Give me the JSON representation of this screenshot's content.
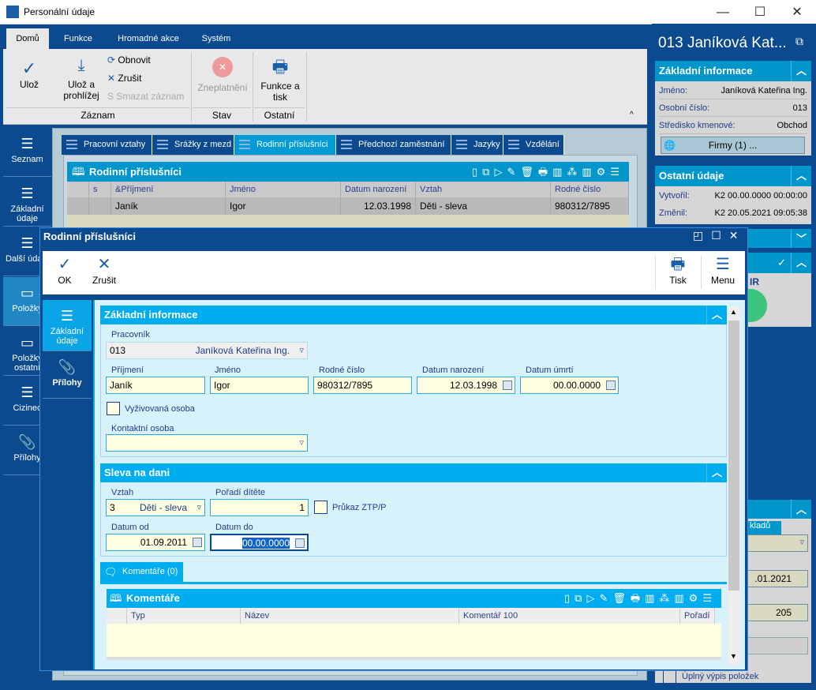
{
  "window": {
    "title": "Personální údaje",
    "minimize": "—",
    "maximize": "☐",
    "close": "✕"
  },
  "ribbon": {
    "tabs": [
      "Domů",
      "Funkce",
      "Hromadné akce",
      "Systém"
    ],
    "buttons": {
      "save": "Ulož",
      "save_view_1": "Ulož a",
      "save_view_2": "prohlížej",
      "refresh": "Obnovit",
      "cancel": "Zrušit",
      "delete": "Smazat záznam",
      "invalidate": "Zneplatnění",
      "functions_1": "Funkce a",
      "functions_2": "tisk"
    },
    "groups": [
      "Záznam",
      "Stav",
      "Ostatní"
    ]
  },
  "sidebar": {
    "items": [
      {
        "label": "Seznam"
      },
      {
        "label": "Základní údaje"
      },
      {
        "label": "Další údaje"
      },
      {
        "label": "Položky"
      },
      {
        "label": "Položky ostatní"
      },
      {
        "label": "Cizinec"
      },
      {
        "label": "Přílohy"
      }
    ]
  },
  "main": {
    "tabs": [
      "Pracovní vztahy",
      "Srážky z mezd",
      "Rodinní příslušníci",
      "Předchozí zaměstnání",
      "Jazyky",
      "Vzdělání"
    ],
    "grid": {
      "title": "Rodinní příslušníci",
      "columns": [
        "s",
        "&Příjmení",
        "Jméno",
        "Datum narození",
        "Vztah",
        "Rodné číslo"
      ],
      "rows": [
        [
          "",
          "Janík",
          "Igor",
          "12.03.1998",
          "Děti - sleva",
          "980312/7895"
        ]
      ]
    }
  },
  "right": {
    "title": "013 Janíková Kat...",
    "basic": {
      "title": "Základní informace",
      "rows": [
        {
          "label": "Jméno:",
          "value": "Janíková Kateřina Ing."
        },
        {
          "label": "Osobní číslo:",
          "value": "013"
        },
        {
          "label": "Středisko kmenové:",
          "value": "Obchod"
        }
      ],
      "button": "Firmy (1) ..."
    },
    "other": {
      "title": "Ostatní údaje",
      "rows": [
        {
          "label": "Vytvořil:",
          "value": "K2 00.00.0000 00:00:00"
        },
        {
          "label": "Změnil:",
          "value": "K2 20.05.2021 09:05:38"
        }
      ]
    },
    "partial": {
      "ir": "IR",
      "tab": "kladů",
      "date": ".01.2021",
      "num": "205",
      "checkbox": "Úplný výpis položek"
    }
  },
  "dialog": {
    "title": "Rodinní příslušníci",
    "toolbar": {
      "ok": "OK",
      "cancel": "Zrušit",
      "print": "Tisk",
      "menu": "Menu"
    },
    "nav": [
      {
        "label": "Základní údaje"
      },
      {
        "label": "Přílohy"
      }
    ],
    "basic": {
      "title": "Základní informace",
      "worker_label": "Pracovník",
      "worker_code": "013",
      "worker_name": "Janíková Kateřina Ing.",
      "surname_label": "Příjmení",
      "surname": "Janík",
      "name_label": "Jméno",
      "name": "Igor",
      "rc_label": "Rodné číslo",
      "rc": "980312/7895",
      "birth_label": "Datum narození",
      "birth": "12.03.1998",
      "death_label": "Datum úmrtí",
      "death": "00.00.0000",
      "dependent_label": "Vyživovaná osoba",
      "dependent": false,
      "contact_label": "Kontaktní osoba",
      "contact": ""
    },
    "tax": {
      "title": "Sleva na dani",
      "relation_label": "Vztah",
      "relation_code": "3",
      "relation": "Děti - sleva",
      "order_label": "Pořadí dítěte",
      "order": "1",
      "ztp_label": "Průkaz ZTP/P",
      "ztp": false,
      "from_label": "Datum od",
      "from": "01.09.2011",
      "to_label": "Datum do",
      "to": "00.00.0000"
    },
    "comments": {
      "tab": "Komentáře (0)",
      "title": "Komentáře",
      "columns": [
        "Typ",
        "Název",
        "Komentář 100",
        "Pořadí"
      ]
    }
  },
  "colors": {
    "dark_blue": "#0b4a8f",
    "accent": "#00adef",
    "field": "#fefee0"
  }
}
